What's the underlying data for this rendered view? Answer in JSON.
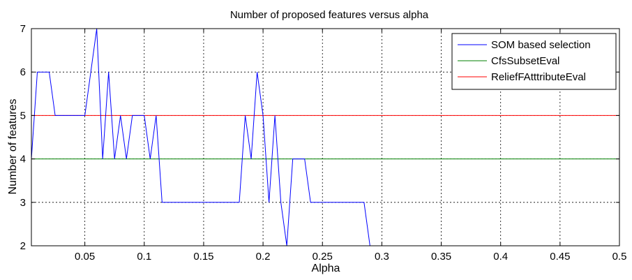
{
  "chart_data": {
    "type": "line",
    "title": "Number of proposed features versus alpha",
    "xlabel": "Alpha",
    "ylabel": "Number of features",
    "xlim": [
      0.005,
      0.5
    ],
    "ylim": [
      2,
      7
    ],
    "xticks": [
      0.05,
      0.1,
      0.15,
      0.2,
      0.25,
      0.3,
      0.35,
      0.4,
      0.45,
      0.5
    ],
    "xtick_labels": [
      "0.05",
      "0.1",
      "0.15",
      "0.2",
      "0.25",
      "0.3",
      "0.35",
      "0.4",
      "0.45",
      "0.5"
    ],
    "yticks": [
      2,
      3,
      4,
      5,
      6,
      7
    ],
    "ytick_labels": [
      "2",
      "3",
      "4",
      "5",
      "6",
      "7"
    ],
    "grid": true,
    "legend_position": "top-right",
    "series": [
      {
        "name": "SOM based selection",
        "color": "#0000ff",
        "x": [
          0.005,
          0.01,
          0.015,
          0.02,
          0.025,
          0.03,
          0.035,
          0.04,
          0.045,
          0.05,
          0.055,
          0.06,
          0.065,
          0.07,
          0.075,
          0.08,
          0.085,
          0.09,
          0.095,
          0.1,
          0.105,
          0.11,
          0.115,
          0.12,
          0.125,
          0.13,
          0.135,
          0.14,
          0.145,
          0.15,
          0.155,
          0.16,
          0.165,
          0.17,
          0.175,
          0.18,
          0.185,
          0.19,
          0.195,
          0.2,
          0.205,
          0.21,
          0.215,
          0.22,
          0.225,
          0.23,
          0.235,
          0.24,
          0.245,
          0.25,
          0.255,
          0.26,
          0.265,
          0.27,
          0.275,
          0.28,
          0.285,
          0.29,
          0.295,
          0.3,
          0.35,
          0.4,
          0.45,
          0.5
        ],
        "y": [
          4,
          6,
          6,
          6,
          5,
          5,
          5,
          5,
          5,
          5,
          6,
          7,
          4,
          6,
          4,
          5,
          4,
          5,
          5,
          5,
          4,
          5,
          3,
          3,
          3,
          3,
          3,
          3,
          3,
          3,
          3,
          3,
          3,
          3,
          3,
          3,
          5,
          4,
          6,
          5,
          3,
          5,
          3,
          2,
          4,
          4,
          4,
          3,
          3,
          3,
          3,
          3,
          3,
          3,
          3,
          3,
          3,
          2,
          2,
          2,
          2,
          2,
          2,
          2
        ]
      },
      {
        "name": "CfsSubsetEval",
        "color": "#008000",
        "x": [
          0.005,
          0.5
        ],
        "y": [
          4,
          4
        ]
      },
      {
        "name": "ReliefFAtttributeEval",
        "color": "#ff0000",
        "x": [
          0.005,
          0.5
        ],
        "y": [
          5,
          5
        ]
      }
    ]
  }
}
